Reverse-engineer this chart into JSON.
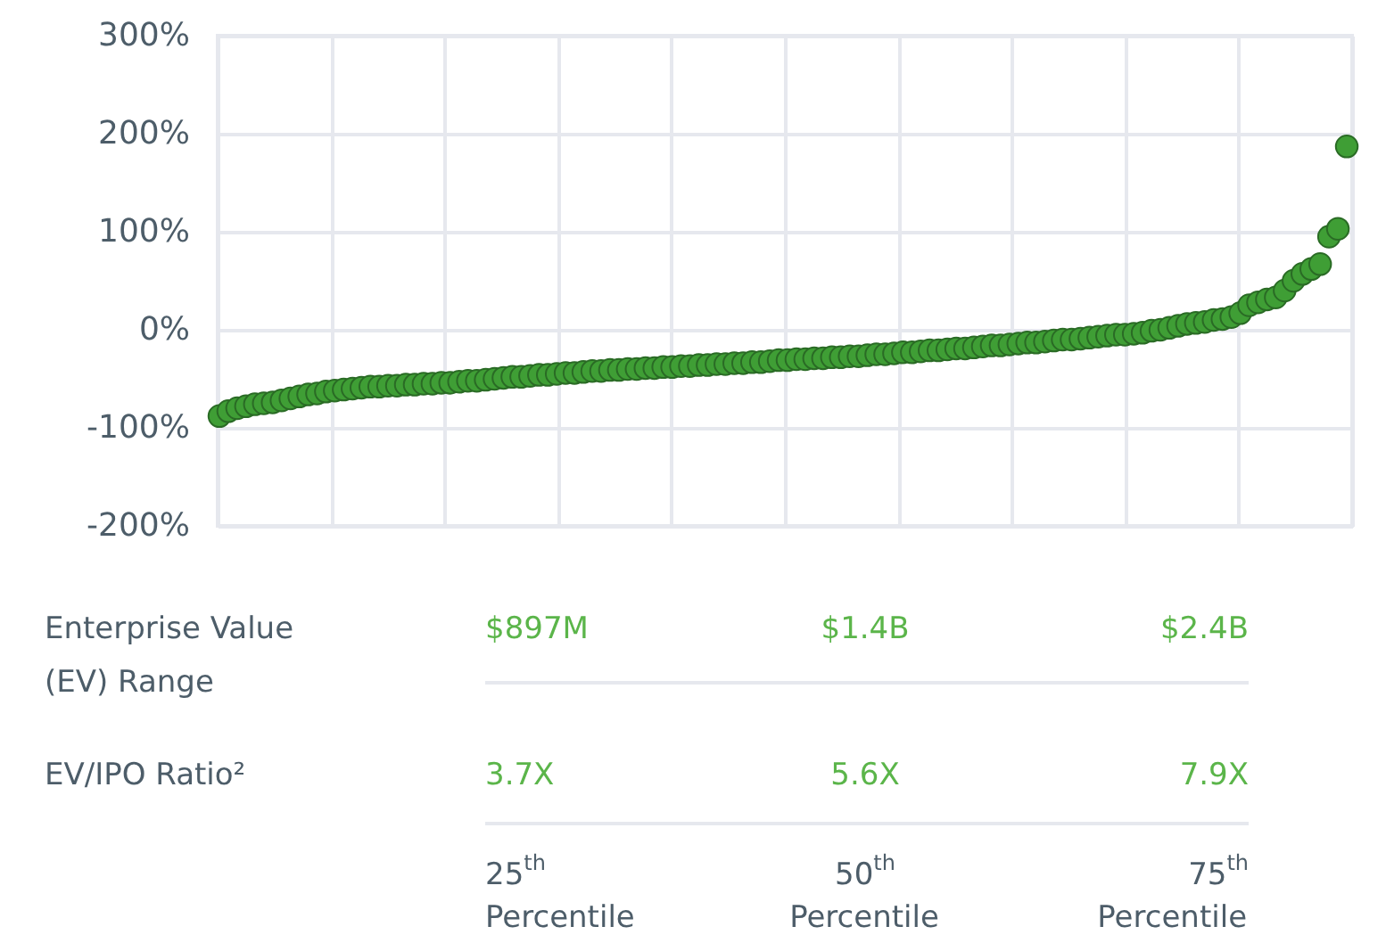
{
  "chart_data": {
    "type": "scatter",
    "categories": [
      null,
      null,
      null,
      null,
      null,
      null,
      null,
      null,
      null,
      null,
      null,
      null,
      null,
      null,
      null,
      null,
      null,
      null,
      null,
      null,
      null,
      null,
      null,
      null,
      null,
      null,
      null,
      null,
      null,
      null,
      null,
      null,
      null,
      null,
      null,
      null,
      null,
      null,
      null,
      null,
      null,
      null,
      null,
      null,
      null,
      null,
      null,
      null,
      null,
      null,
      null,
      null,
      null,
      null,
      null,
      null,
      null,
      null,
      null,
      null,
      null,
      null,
      null,
      null,
      null,
      null,
      null,
      null,
      null,
      null,
      null,
      null,
      null,
      null,
      null,
      null,
      null,
      null,
      null,
      null,
      null,
      null,
      null,
      null,
      null,
      null,
      null,
      null,
      null,
      null,
      null,
      null,
      null,
      null,
      null,
      null,
      null,
      null,
      null,
      null,
      null,
      null,
      null,
      null,
      null,
      null,
      null,
      null,
      null,
      null,
      null,
      null,
      null,
      null,
      null,
      null,
      null,
      null,
      null,
      null,
      null,
      null,
      null,
      null,
      null,
      null,
      null,
      null
    ],
    "series": [
      {
        "color": "#3f9e35",
        "values": [
          -88,
          -83,
          -80,
          -78,
          -76,
          -75,
          -74,
          -72,
          -70,
          -68,
          -66,
          -65,
          -63,
          -62,
          -61,
          -60,
          -59,
          -58,
          -58,
          -57,
          -57,
          -56,
          -56,
          -55,
          -55,
          -54,
          -54,
          -53,
          -52,
          -52,
          -51,
          -50,
          -49,
          -48,
          -48,
          -47,
          -46,
          -46,
          -45,
          -44,
          -44,
          -43,
          -42,
          -42,
          -41,
          -41,
          -40,
          -40,
          -39,
          -39,
          -38,
          -38,
          -37,
          -37,
          -36,
          -36,
          -35,
          -35,
          -34,
          -34,
          -33,
          -33,
          -32,
          -31,
          -31,
          -30,
          -30,
          -29,
          -29,
          -28,
          -28,
          -27,
          -27,
          -26,
          -25,
          -25,
          -24,
          -23,
          -23,
          -22,
          -21,
          -21,
          -20,
          -19,
          -19,
          -18,
          -17,
          -16,
          -16,
          -15,
          -14,
          -13,
          -13,
          -12,
          -11,
          -10,
          -10,
          -9,
          -8,
          -7,
          -6,
          -5,
          -5,
          -4,
          -3,
          -1,
          0,
          2,
          4,
          6,
          7,
          8,
          10,
          11,
          13,
          17,
          25,
          28,
          31,
          33,
          40,
          50,
          57,
          62,
          67,
          95,
          103,
          187
        ]
      }
    ],
    "ylim": [
      -200,
      300
    ],
    "yticks": [
      {
        "value": -200,
        "label": "-200%"
      },
      {
        "value": -100,
        "label": "-100%"
      },
      {
        "value": 0,
        "label": "0%"
      },
      {
        "value": 100,
        "label": "100%"
      },
      {
        "value": 200,
        "label": "200%"
      },
      {
        "value": 300,
        "label": "300%"
      }
    ],
    "grid": true,
    "marker": "circle",
    "tick_labels": "y",
    "annotations": [
      "Enterprise Value (EV) Range",
      "$897M",
      "$1.4B",
      "$2.4B",
      "EV/IPO Ratio²",
      "3.7X",
      "5.6X",
      "7.9X",
      "25$^{th}$ Percentile",
      "50$^{th}$ Percentile",
      "75$^{th}$ Percentile"
    ]
  }
}
